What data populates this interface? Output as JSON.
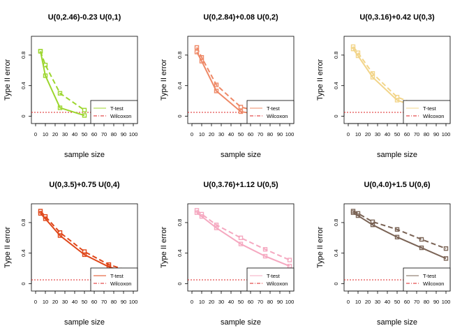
{
  "figure": {
    "ylabel": "Type II error",
    "xlabel": "sample size",
    "legend": [
      "T-test",
      "Wilcoxon"
    ],
    "reference_line": {
      "y": 0.05,
      "color": "#dd2222",
      "style": "dotted"
    }
  },
  "chart_data": [
    {
      "type": "line",
      "title": "U(0,2.46)-0.23 U(0,1)",
      "color": "#9cd62e",
      "xlim": [
        0,
        100
      ],
      "ylim": [
        0,
        1
      ],
      "xticks": [
        0,
        10,
        20,
        30,
        40,
        50,
        60,
        70,
        80,
        90,
        100
      ],
      "yticks": [
        0,
        0.4,
        0.8
      ],
      "grid": false,
      "legend_position": "bottom-right",
      "series": [
        {
          "name": "T-test",
          "dash": "solid",
          "x": [
            5,
            10,
            25,
            50
          ],
          "y": [
            0.85,
            0.53,
            0.11,
            0.01
          ]
        },
        {
          "name": "Wilcoxon",
          "dash": "dashed",
          "x": [
            5,
            10,
            25,
            50
          ],
          "y": [
            0.85,
            0.67,
            0.3,
            0.08
          ]
        }
      ]
    },
    {
      "type": "line",
      "title": "U(0,2.84)+0.08 U(0,2)",
      "color": "#ee8866",
      "xlim": [
        0,
        100
      ],
      "ylim": [
        0,
        1
      ],
      "xticks": [
        0,
        10,
        20,
        30,
        40,
        50,
        60,
        70,
        80,
        90,
        100
      ],
      "yticks": [
        0,
        0.4,
        0.8
      ],
      "grid": false,
      "legend_position": "bottom-right",
      "series": [
        {
          "name": "T-test",
          "dash": "solid",
          "x": [
            5,
            10,
            25,
            50,
            75,
            100
          ],
          "y": [
            0.84,
            0.72,
            0.33,
            0.06,
            0.01,
            0.0
          ]
        },
        {
          "name": "Wilcoxon",
          "dash": "dashed",
          "x": [
            5,
            10,
            25,
            50,
            75,
            100
          ],
          "y": [
            0.9,
            0.77,
            0.41,
            0.12,
            0.04,
            0.01
          ]
        }
      ]
    },
    {
      "type": "line",
      "title": "U(0,3.16)+0.42 U(0,3)",
      "color": "#f2d58a",
      "xlim": [
        0,
        100
      ],
      "ylim": [
        0,
        1
      ],
      "xticks": [
        0,
        10,
        20,
        30,
        40,
        50,
        60,
        70,
        80,
        90,
        100
      ],
      "yticks": [
        0,
        0.4,
        0.8
      ],
      "grid": false,
      "legend_position": "bottom-right",
      "series": [
        {
          "name": "T-test",
          "dash": "solid",
          "x": [
            5,
            10,
            25,
            50,
            75,
            100
          ],
          "y": [
            0.88,
            0.79,
            0.51,
            0.21,
            0.1,
            0.04
          ]
        },
        {
          "name": "Wilcoxon",
          "dash": "dashed",
          "x": [
            5,
            10,
            25,
            50,
            75,
            100
          ],
          "y": [
            0.91,
            0.83,
            0.56,
            0.25,
            0.13,
            0.06
          ]
        }
      ]
    },
    {
      "type": "line",
      "title": "U(0,3.5)+0.75 U(0,4)",
      "color": "#e0471a",
      "xlim": [
        0,
        100
      ],
      "ylim": [
        0,
        1
      ],
      "xticks": [
        0,
        10,
        20,
        30,
        40,
        50,
        60,
        70,
        80,
        90,
        100
      ],
      "yticks": [
        0,
        0.4,
        0.8
      ],
      "grid": false,
      "legend_position": "bottom-right",
      "series": [
        {
          "name": "T-test",
          "dash": "solid",
          "x": [
            5,
            10,
            25,
            50,
            75,
            100
          ],
          "y": [
            0.92,
            0.85,
            0.63,
            0.38,
            0.22,
            0.13
          ]
        },
        {
          "name": "Wilcoxon",
          "dash": "dashed",
          "x": [
            5,
            10,
            25,
            50,
            75,
            100
          ],
          "y": [
            0.95,
            0.88,
            0.67,
            0.42,
            0.25,
            0.15
          ]
        }
      ]
    },
    {
      "type": "line",
      "title": "U(0,3.76)+1.12 U(0,5)",
      "color": "#f5a8c0",
      "xlim": [
        0,
        100
      ],
      "ylim": [
        0,
        1
      ],
      "xticks": [
        0,
        10,
        20,
        30,
        40,
        50,
        60,
        70,
        80,
        90,
        100
      ],
      "yticks": [
        0,
        0.4,
        0.8
      ],
      "grid": false,
      "legend_position": "bottom-right",
      "series": [
        {
          "name": "T-test",
          "dash": "solid",
          "x": [
            5,
            10,
            25,
            50,
            75,
            100
          ],
          "y": [
            0.93,
            0.88,
            0.73,
            0.52,
            0.36,
            0.23
          ]
        },
        {
          "name": "Wilcoxon",
          "dash": "dashed",
          "x": [
            5,
            10,
            25,
            50,
            75,
            100
          ],
          "y": [
            0.96,
            0.91,
            0.77,
            0.6,
            0.45,
            0.31
          ]
        }
      ]
    },
    {
      "type": "line",
      "title": "U(0,4.0)+1.5 U(0,6)",
      "color": "#7a6355",
      "xlim": [
        0,
        100
      ],
      "ylim": [
        0,
        1
      ],
      "xticks": [
        0,
        10,
        20,
        30,
        40,
        50,
        60,
        70,
        80,
        90,
        100
      ],
      "yticks": [
        0,
        0.4,
        0.8
      ],
      "grid": false,
      "legend_position": "bottom-right",
      "series": [
        {
          "name": "T-test",
          "dash": "solid",
          "x": [
            5,
            10,
            25,
            50,
            75,
            100
          ],
          "y": [
            0.93,
            0.89,
            0.77,
            0.61,
            0.47,
            0.33
          ]
        },
        {
          "name": "Wilcoxon",
          "dash": "dashed",
          "x": [
            5,
            10,
            25,
            50,
            75,
            100
          ],
          "y": [
            0.95,
            0.92,
            0.81,
            0.71,
            0.58,
            0.46
          ]
        }
      ]
    }
  ]
}
